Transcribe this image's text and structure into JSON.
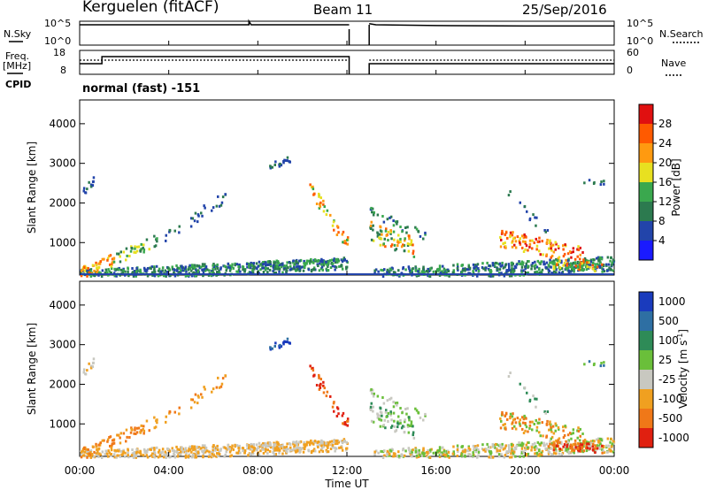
{
  "header": {
    "station": "Kerguelen (fitACF)",
    "beam": "Beam 11",
    "date": "25/Sep/2016"
  },
  "left_labels": {
    "nsky": "N.Sky",
    "freq_line1": "Freq.",
    "freq_line2": "[MHz]",
    "cpid": "CPID"
  },
  "right_labels": {
    "nsearch": "N.Search",
    "nave": "Nave"
  },
  "cpid_text": "normal (fast) -151",
  "colors": {
    "power": [
      "#1a1aff",
      "#2244aa",
      "#2c7a4f",
      "#3aa84e",
      "#e8e020",
      "#ff9a10",
      "#ff5a00",
      "#e01010"
    ],
    "velocity": [
      "#1a3bbd",
      "#2e6fa3",
      "#2e8b57",
      "#6abf3a",
      "#c8c8c0",
      "#f0a020",
      "#f07818",
      "#e02010"
    ]
  },
  "chart_data": [
    {
      "type": "line",
      "title": "N.Sky / N.Search",
      "x_ticks": [
        "00:00",
        "04:00",
        "08:00",
        "12:00",
        "16:00",
        "20:00",
        "00:00"
      ],
      "left_ticks": [
        "10^5",
        "10^0"
      ],
      "right_ticks": [
        "10^5",
        "10^0"
      ],
      "series": [
        {
          "name": "N.Sky",
          "x": [
            0,
            7.6,
            7.6,
            7.7,
            12.1
          ],
          "y": [
            0.85,
            0.85,
            1.0,
            0.85,
            0.85
          ]
        },
        {
          "name": "N.Search",
          "x": [
            13.0,
            13.3,
            16,
            20,
            24
          ],
          "y": [
            0.9,
            0.85,
            0.82,
            0.8,
            0.8
          ]
        }
      ],
      "gap": [
        12.1,
        13.0
      ]
    },
    {
      "type": "line",
      "title": "Freq. / Nave",
      "left_ticks": [
        "18",
        "8"
      ],
      "right_ticks": [
        "60",
        "0"
      ],
      "series": [
        {
          "name": "Freq.",
          "x": [
            0,
            1.0,
            1.0,
            12.1
          ],
          "y": [
            0.5,
            0.5,
            0.82,
            0.82
          ]
        },
        {
          "name": "Nave",
          "x": [
            0,
            1.0,
            12.1
          ],
          "y": [
            0.63,
            0.63,
            0.63
          ]
        }
      ],
      "gap": [
        12.1,
        13.0
      ]
    },
    {
      "type": "heatmap",
      "ylabel": "Slant Range [km]",
      "y_ticks": [
        1000,
        2000,
        3000,
        4000
      ],
      "ylim": [
        180,
        4600
      ],
      "xlim": [
        0,
        24
      ],
      "colorbar": {
        "label": "Power [dB]",
        "ticks": [
          4,
          8,
          12,
          16,
          20,
          24,
          28
        ]
      }
    },
    {
      "type": "heatmap",
      "ylabel": "Slant Range [km]",
      "xlabel": "Time UT",
      "y_ticks": [
        1000,
        2000,
        3000,
        4000
      ],
      "ylim": [
        180,
        4600
      ],
      "xlim": [
        0,
        24
      ],
      "colorbar": {
        "label": "Velocity [m s^-1]",
        "ticks": [
          "1000",
          "500",
          "100",
          "25",
          "-25",
          "-100",
          "-500",
          "-1000"
        ]
      }
    }
  ]
}
